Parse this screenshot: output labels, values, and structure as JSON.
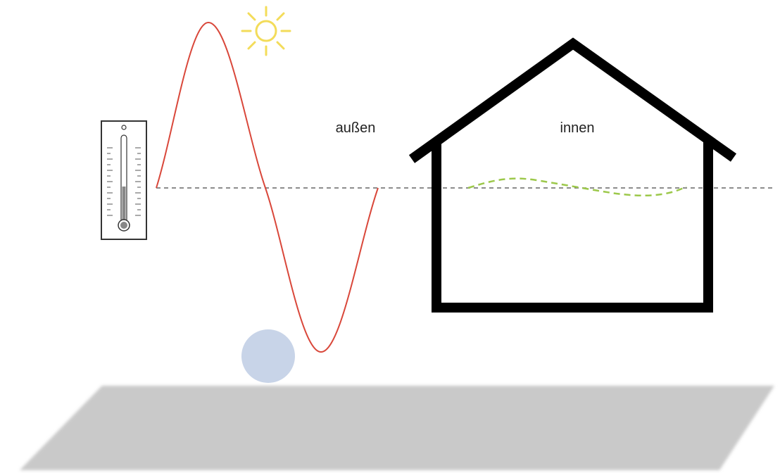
{
  "labels": {
    "outside": "außen",
    "inside": "innen"
  }
}
